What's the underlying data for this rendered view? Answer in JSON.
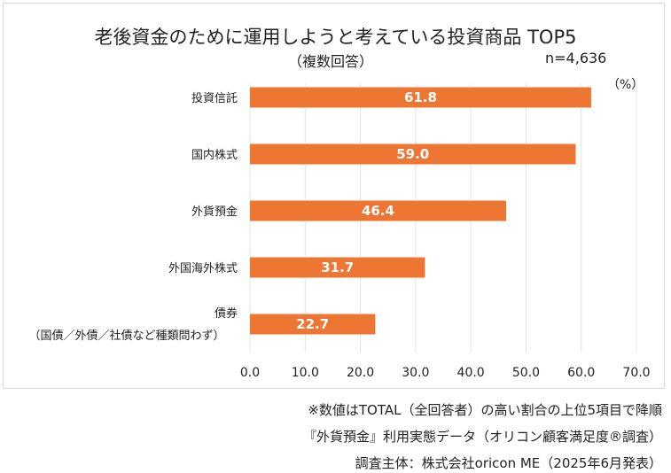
{
  "chart_data": {
    "type": "bar",
    "orientation": "horizontal",
    "title": "老後資金のために運用しようと考えている投資商品 TOP5",
    "subtitle": "（複数回答）",
    "sample_size": "n=4,636",
    "unit": "（%）",
    "categories": [
      "投資信託",
      "国内株式",
      "外貨預金",
      "外国海外株式",
      "債券"
    ],
    "category_sublabels": [
      "",
      "",
      "",
      "",
      "（国債／外債／社債など種類問わず）"
    ],
    "values": [
      61.8,
      59.0,
      46.4,
      31.7,
      22.7
    ],
    "value_labels": [
      "61.8",
      "59.0",
      "46.4",
      "31.7",
      "22.7"
    ],
    "xlim": [
      0,
      70
    ],
    "xticks": [
      "0.0",
      "10.0",
      "20.0",
      "30.0",
      "40.0",
      "50.0",
      "60.0",
      "70.0"
    ],
    "grid": true,
    "bar_color": "#ed7633"
  },
  "notes": [
    "※数値はTOTAL（全回答者）の高い割合の上位5項目で降順",
    "『外貨預金』利用実態データ（オリコン顧客満足度®調査）",
    "調査主体：株式会社oricon ME（2025年6月発表）"
  ]
}
